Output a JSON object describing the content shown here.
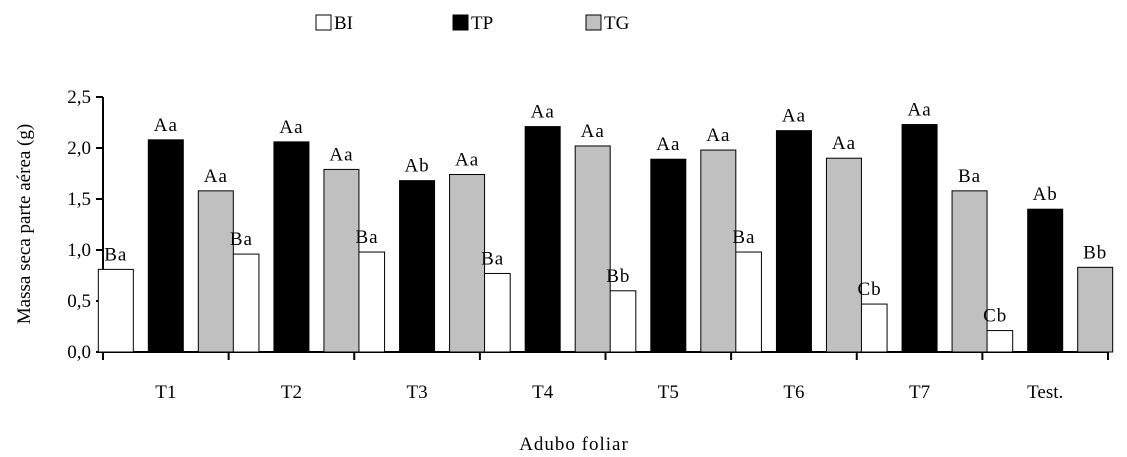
{
  "chart_data": {
    "type": "bar",
    "xlabel": "Adubo foliar",
    "ylabel": "Massa seca parte aérea (g)",
    "ylim": [
      0,
      2.5
    ],
    "yticks": [
      "0,0",
      "0,5",
      "1,0",
      "1,5",
      "2,0",
      "2,5"
    ],
    "grid": false,
    "legend_position": "top",
    "categories": [
      "T1",
      "T2",
      "T3",
      "T4",
      "T5",
      "T6",
      "T7",
      "Test."
    ],
    "series": [
      {
        "name": "BI",
        "color": "#ffffff",
        "values": [
          0.81,
          0.96,
          0.98,
          0.77,
          0.6,
          0.98,
          0.47,
          0.21
        ],
        "labels": [
          "Ba",
          "Ba",
          "Ba",
          "Ba",
          "Bb",
          "Ba",
          "Cb",
          "Cb"
        ]
      },
      {
        "name": "TP",
        "color": "#000000",
        "values": [
          2.08,
          2.06,
          1.68,
          2.21,
          1.89,
          2.17,
          2.23,
          1.4
        ],
        "labels": [
          "Aa",
          "Aa",
          "Ab",
          "Aa",
          "Aa",
          "Aa",
          "Aa",
          "Ab"
        ]
      },
      {
        "name": "TG",
        "color": "#c0c0c0",
        "values": [
          1.58,
          1.79,
          1.74,
          2.02,
          1.98,
          1.9,
          1.58,
          0.83
        ],
        "labels": [
          "Aa",
          "Aa",
          "Aa",
          "Aa",
          "Aa",
          "Aa",
          "Ba",
          "Bb"
        ]
      }
    ]
  }
}
